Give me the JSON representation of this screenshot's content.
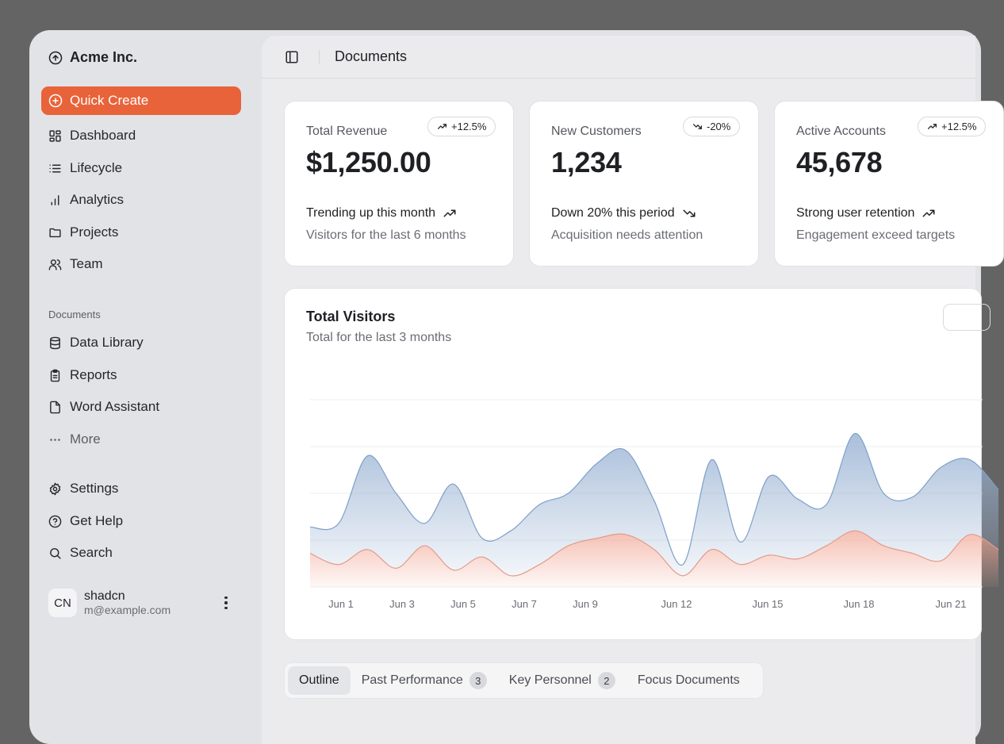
{
  "app": {
    "name": "Acme Inc."
  },
  "sidebar": {
    "quick_create": "Quick Create",
    "nav": [
      {
        "label": "Dashboard",
        "icon": "dashboard-icon"
      },
      {
        "label": "Lifecycle",
        "icon": "list-icon"
      },
      {
        "label": "Analytics",
        "icon": "bar-chart-icon"
      },
      {
        "label": "Projects",
        "icon": "folder-icon"
      },
      {
        "label": "Team",
        "icon": "users-icon"
      }
    ],
    "documents_label": "Documents",
    "documents": [
      {
        "label": "Data Library",
        "icon": "database-icon"
      },
      {
        "label": "Reports",
        "icon": "clipboard-icon"
      },
      {
        "label": "Word Assistant",
        "icon": "file-icon"
      },
      {
        "label": "More",
        "icon": "ellipsis-icon"
      }
    ],
    "secondary": [
      {
        "label": "Settings",
        "icon": "gear-icon"
      },
      {
        "label": "Get Help",
        "icon": "help-icon"
      },
      {
        "label": "Search",
        "icon": "search-icon"
      }
    ],
    "user": {
      "initials": "CN",
      "name": "shadcn",
      "email": "m@example.com"
    }
  },
  "header": {
    "title": "Documents"
  },
  "cards": [
    {
      "label": "Total Revenue",
      "value": "$1,250.00",
      "badge": "+12.5%",
      "direction": "up",
      "trend": "Trending up this month",
      "sub": "Visitors for the last 6 months"
    },
    {
      "label": "New Customers",
      "value": "1,234",
      "badge": "-20%",
      "direction": "down",
      "trend": "Down 20% this period",
      "sub": "Acquisition needs attention"
    },
    {
      "label": "Active Accounts",
      "value": "45,678",
      "badge": "+12.5%",
      "direction": "up",
      "trend": "Strong user retention",
      "sub": "Engagement exceed targets"
    }
  ],
  "chart": {
    "title": "Total Visitors",
    "subtitle": "Total for the last 3 months"
  },
  "chart_data": {
    "type": "area",
    "title": "Total Visitors",
    "subtitle": "Total for the last 3 months",
    "x_ticks": [
      "Jun 1",
      "Jun 3",
      "Jun 5",
      "Jun 7",
      "Jun 9",
      "Jun 12",
      "Jun 15",
      "Jun 18",
      "Jun 21"
    ],
    "grid": true,
    "stacked": true,
    "colors": [
      "#f2a998",
      "#9bb4d4"
    ],
    "series": [
      {
        "values": [
          18,
          12,
          20,
          10,
          22,
          9,
          16,
          6,
          12,
          22,
          26,
          28,
          20,
          6,
          20,
          12,
          17,
          15,
          22,
          30,
          22,
          18,
          14,
          28,
          20
        ]
      },
      {
        "values": [
          14,
          22,
          50,
          40,
          12,
          46,
          10,
          24,
          32,
          28,
          40,
          45,
          26,
          6,
          48,
          12,
          42,
          32,
          22,
          52,
          28,
          30,
          50,
          40,
          32
        ]
      }
    ],
    "ylim": [
      0,
      100
    ]
  },
  "tabs": [
    {
      "label": "Outline",
      "count": ""
    },
    {
      "label": "Past Performance",
      "count": "3"
    },
    {
      "label": "Key Personnel",
      "count": "2"
    },
    {
      "label": "Focus Documents",
      "count": ""
    }
  ]
}
